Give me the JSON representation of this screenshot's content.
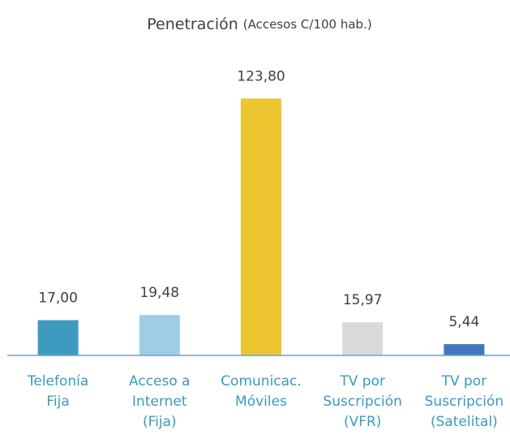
{
  "chart_data": {
    "type": "bar",
    "title": "Penetración",
    "subtitle": "(Accesos C/100 hab.)",
    "categories": [
      [
        "Telefonía",
        "Fija"
      ],
      [
        "Acceso a",
        "Internet",
        "(Fija)"
      ],
      [
        "Comunicac.",
        "Móviles"
      ],
      [
        "TV por",
        "Suscripción",
        "(VFR)"
      ],
      [
        "TV por",
        "Suscripción",
        "(Satelital)"
      ]
    ],
    "values": [
      17.0,
      19.48,
      123.8,
      15.97,
      5.44
    ],
    "value_labels": [
      "17,00",
      "19,48",
      "123,80",
      "15,97",
      "5,44"
    ],
    "colors": [
      "#3e9bbf",
      "#9fcde6",
      "#ecc530",
      "#d9d9d9",
      "#4178bd"
    ],
    "ylim": [
      0,
      140
    ]
  }
}
